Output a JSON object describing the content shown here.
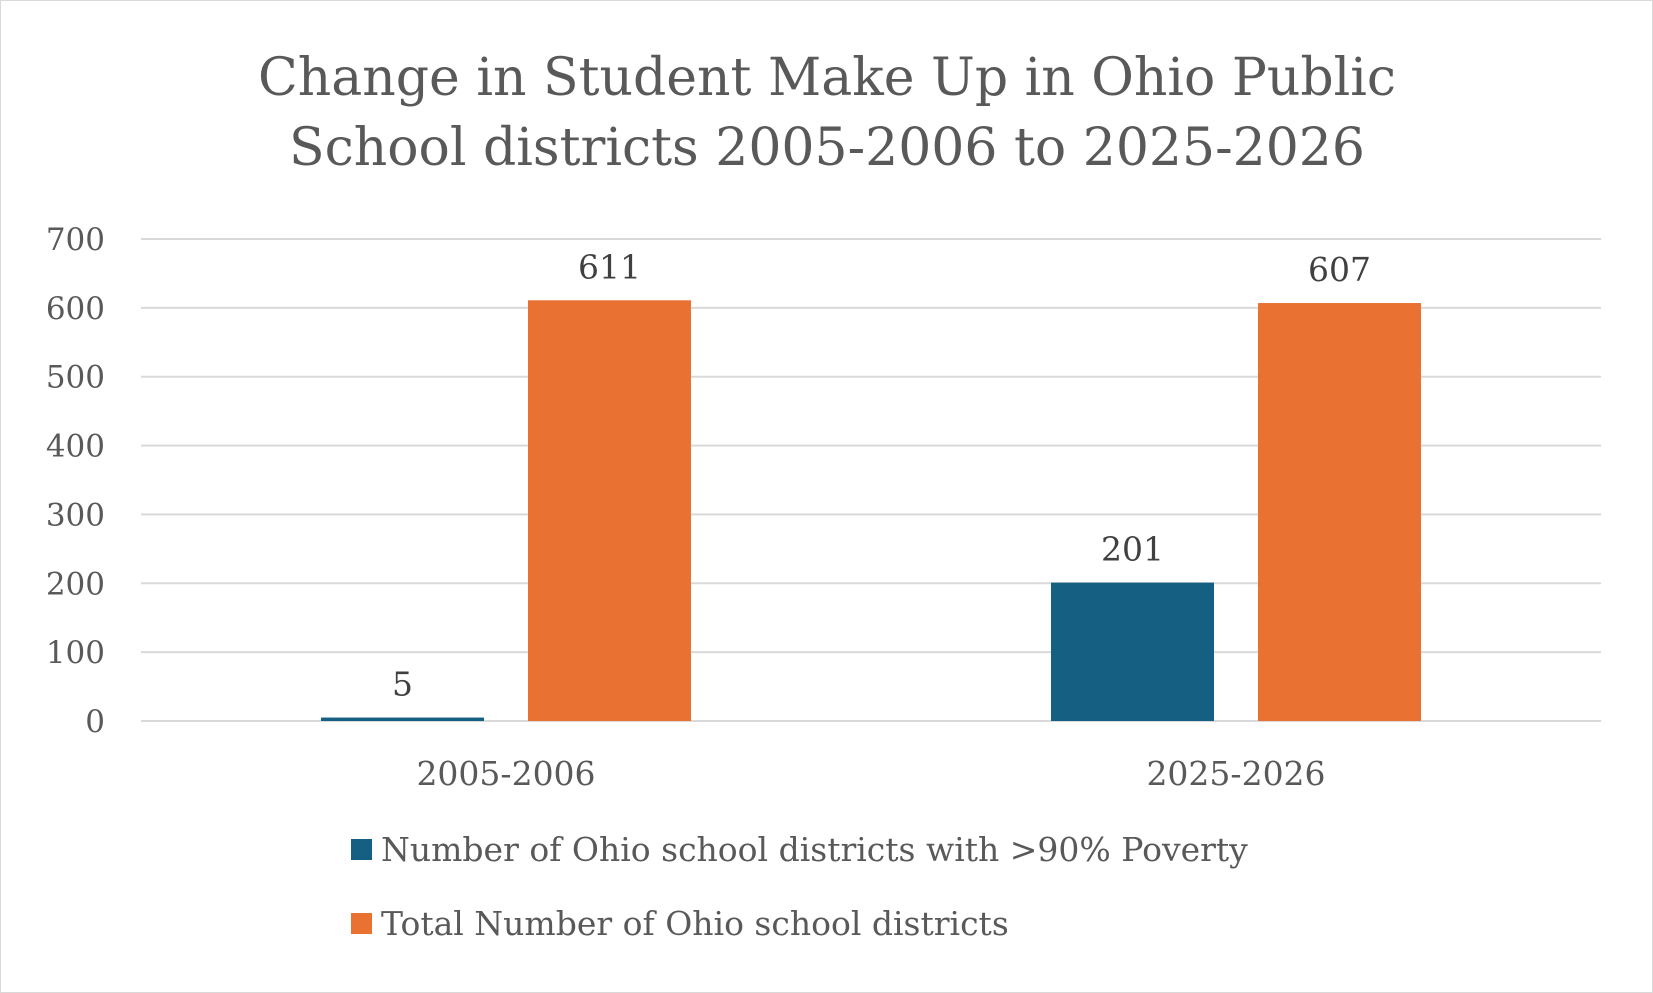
{
  "chart_data": {
    "type": "bar",
    "title_lines": [
      "Change in Student Make Up in Ohio Public",
      "School districts 2005-2006 to 2025-2026"
    ],
    "categories": [
      "2005-2006",
      "2025-2026"
    ],
    "series": [
      {
        "name": "Number of Ohio school districts with >90% Poverty",
        "color": "#156082",
        "values": [
          5,
          201
        ],
        "labels": [
          "5",
          "201"
        ]
      },
      {
        "name": "Total Number of Ohio school districts",
        "color": "#e97132",
        "values": [
          611,
          607
        ],
        "labels": [
          "611",
          "607"
        ]
      }
    ],
    "ylim": [
      0,
      700
    ],
    "yticks": [
      0,
      100,
      200,
      300,
      400,
      500,
      600,
      700
    ],
    "ytick_labels": [
      "0",
      "100",
      "200",
      "300",
      "400",
      "500",
      "600",
      "700"
    ],
    "grid": true,
    "legend_position": "bottom",
    "xlabel": "",
    "ylabel": ""
  }
}
